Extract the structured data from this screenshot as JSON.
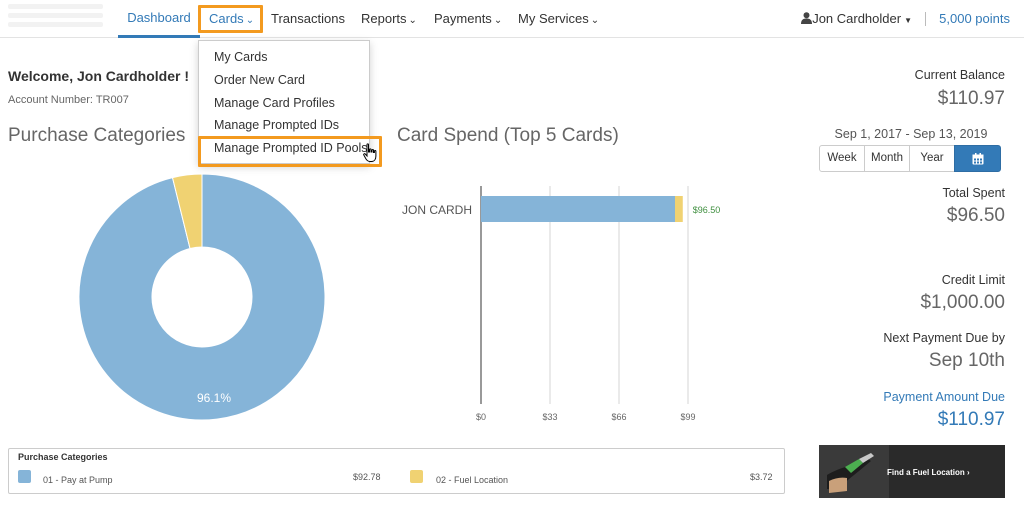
{
  "nav": {
    "items": [
      {
        "label": "Dashboard"
      },
      {
        "label": "Cards"
      },
      {
        "label": "Transactions"
      },
      {
        "label": "Reports"
      },
      {
        "label": "Payments"
      },
      {
        "label": "My Services"
      }
    ],
    "user": "Jon Cardholder",
    "points": "5,000 points"
  },
  "dropdown": {
    "items": [
      "My Cards",
      "Order New Card",
      "Manage Card Profiles",
      "Manage Prompted IDs",
      "Manage Prompted ID Pools"
    ]
  },
  "welcome": {
    "greeting": "Welcome, Jon Cardholder !",
    "account": "Account Number: TR007"
  },
  "purchase_title": "Purchase Categories",
  "card_spend_title": "Card Spend (Top 5 Cards)",
  "legend": {
    "title": "Purchase Categories",
    "items": [
      {
        "label": "01 - Pay at Pump",
        "value": "$92.78",
        "color": "#85b4d8"
      },
      {
        "label": "02 - Fuel Location",
        "value": "$3.72",
        "color": "#f0d272"
      }
    ]
  },
  "right": {
    "current_balance_label": "Current Balance",
    "current_balance": "$110.97",
    "date_range": "Sep 1, 2017 - Sep 13, 2019",
    "buttons": [
      "Week",
      "Month",
      "Year"
    ],
    "total_spent_label": "Total Spent",
    "total_spent": "$96.50",
    "credit_limit_label": "Credit Limit",
    "credit_limit": "$1,000.00",
    "next_payment_label": "Next Payment Due by",
    "next_payment": "Sep 10th",
    "payment_amount_label": "Payment Amount Due",
    "payment_amount": "$110.97"
  },
  "ad": {
    "text": "Find a Fuel Location ›"
  },
  "colors": {
    "accent": "#337ab7",
    "highlight": "#f39a1f",
    "pump": "#85b4d8",
    "fuel": "#f0d272"
  },
  "chart_data": [
    {
      "type": "pie",
      "title": "Purchase Categories",
      "categories": [
        "01 - Pay at Pump",
        "02 - Fuel Location"
      ],
      "values": [
        92.78,
        3.72
      ],
      "data_labels": [
        "96.1%",
        ""
      ]
    },
    {
      "type": "bar",
      "orientation": "horizontal",
      "stacked": true,
      "title": "Card Spend (Top 5 Cards)",
      "categories": [
        "JON CARDH"
      ],
      "series": [
        {
          "name": "01 - Pay at Pump",
          "values": [
            92.78
          ]
        },
        {
          "name": "02 - Fuel Location",
          "values": [
            3.72
          ]
        }
      ],
      "total_labels": [
        "$96.50"
      ],
      "xticks": [
        "$0",
        "$33",
        "$66",
        "$99"
      ],
      "xlim": [
        0,
        99
      ],
      "grid": true
    }
  ]
}
